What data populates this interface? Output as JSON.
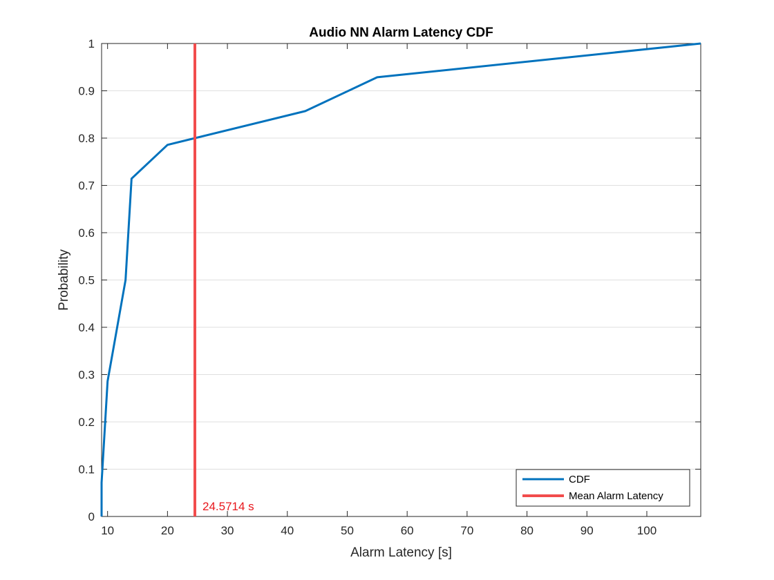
{
  "chart_data": {
    "type": "line",
    "title": "Audio NN Alarm Latency CDF",
    "xlabel": "Alarm Latency [s]",
    "ylabel": "Probability",
    "xlim": [
      9,
      109
    ],
    "ylim": [
      0,
      1
    ],
    "xticks": [
      10,
      20,
      30,
      40,
      50,
      60,
      70,
      80,
      90,
      100
    ],
    "yticks": [
      0,
      0.1,
      0.2,
      0.3,
      0.4,
      0.5,
      0.6,
      0.7,
      0.8,
      0.9,
      1
    ],
    "grid": "horizontal",
    "legend_position": "bottom-right",
    "series": [
      {
        "name": "CDF",
        "color": "#0072BD",
        "x": [
          9,
          9,
          10,
          13,
          14,
          20,
          43,
          55,
          109
        ],
        "y": [
          0,
          0.0714,
          0.2857,
          0.5,
          0.7143,
          0.7857,
          0.8571,
          0.9286,
          1.0
        ]
      },
      {
        "name": "Mean Alarm Latency",
        "color": "#F24C4C",
        "x": [
          24.5714,
          24.5714
        ],
        "y": [
          0,
          1
        ]
      }
    ],
    "annotations": [
      {
        "text": "24.5714 s",
        "x": 24.5714,
        "y": 0,
        "color": "#E8161B"
      }
    ]
  }
}
